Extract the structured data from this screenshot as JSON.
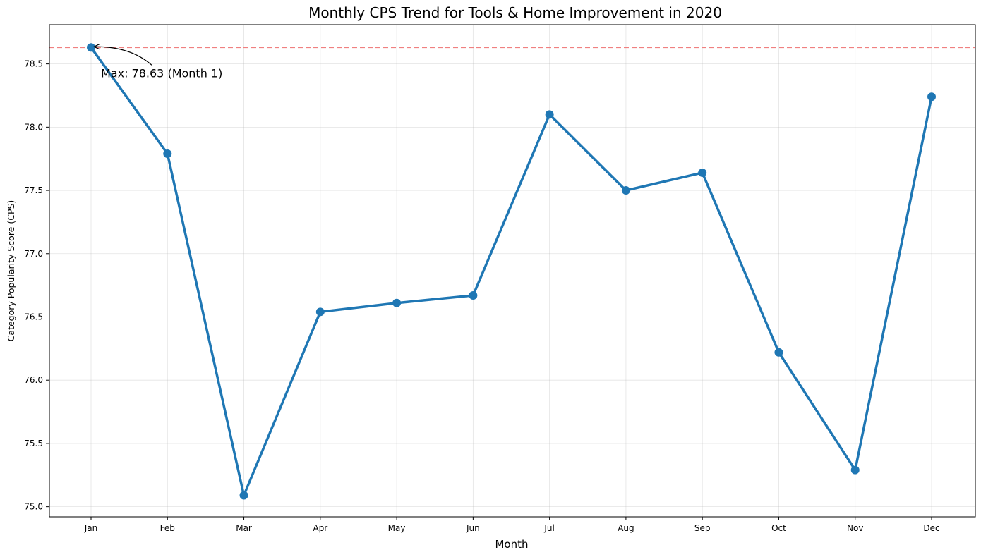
{
  "chart_data": {
    "type": "line",
    "title": "Monthly CPS Trend for Tools & Home Improvement in 2020",
    "xlabel": "Month",
    "ylabel": "Category Popularity Score (CPS)",
    "categories": [
      "Jan",
      "Feb",
      "Mar",
      "Apr",
      "May",
      "Jun",
      "Jul",
      "Aug",
      "Sep",
      "Oct",
      "Nov",
      "Dec"
    ],
    "series": [
      {
        "values": [
          78.63,
          77.79,
          75.09,
          76.54,
          76.61,
          76.67,
          78.1,
          77.5,
          77.64,
          76.22,
          75.29,
          78.24
        ]
      }
    ],
    "ylim": [
      74.92,
      78.81
    ],
    "yticks": [
      "75.0",
      "75.5",
      "76.0",
      "76.5",
      "77.0",
      "77.5",
      "78.0",
      "78.5"
    ],
    "grid": true,
    "reference_line": {
      "value": 78.63,
      "style": "dashed",
      "color": "#f08080"
    },
    "annotation": {
      "text": "Max: 78.63 (Month 1)",
      "category": "Jan",
      "value": 78.63
    },
    "colors": {
      "line": "#1f77b4",
      "marker": "#1f77b4"
    }
  }
}
